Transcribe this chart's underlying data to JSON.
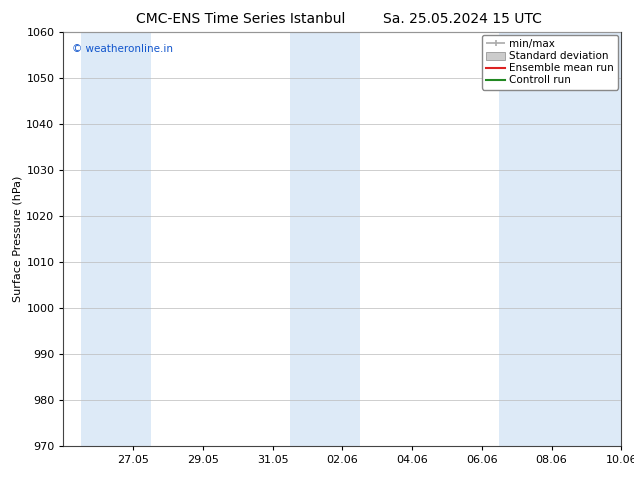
{
  "title_left": "CMC-ENS Time Series Istanbul",
  "title_right": "Sa. 25.05.2024 15 UTC",
  "ylabel": "Surface Pressure (hPa)",
  "ylim": [
    970,
    1060
  ],
  "yticks": [
    970,
    980,
    990,
    1000,
    1010,
    1020,
    1030,
    1040,
    1050,
    1060
  ],
  "xlim": [
    0,
    16
  ],
  "x_tick_positions": [
    2,
    4,
    6,
    8,
    10,
    12,
    14,
    16
  ],
  "x_tick_labels": [
    "27.05",
    "29.05",
    "31.05",
    "02.06",
    "04.06",
    "06.06",
    "08.06",
    "10.06"
  ],
  "shaded_bands": [
    {
      "x_start": 0.5,
      "x_end": 2.5
    },
    {
      "x_start": 6.5,
      "x_end": 8.5
    },
    {
      "x_start": 12.5,
      "x_end": 16.0
    }
  ],
  "band_color": "#ddeaf7",
  "copyright_text": "© weatheronline.in",
  "copyright_color": "#1155cc",
  "legend_labels": [
    "min/max",
    "Standard deviation",
    "Ensemble mean run",
    "Controll run"
  ],
  "legend_colors": [
    "#aaaaaa",
    "#cccccc",
    "#dd2222",
    "#228822"
  ],
  "bg_color": "#ffffff",
  "grid_color": "#bbbbbb",
  "spine_color": "#444444",
  "title_fontsize": 10,
  "label_fontsize": 8,
  "tick_fontsize": 8,
  "legend_fontsize": 7.5
}
